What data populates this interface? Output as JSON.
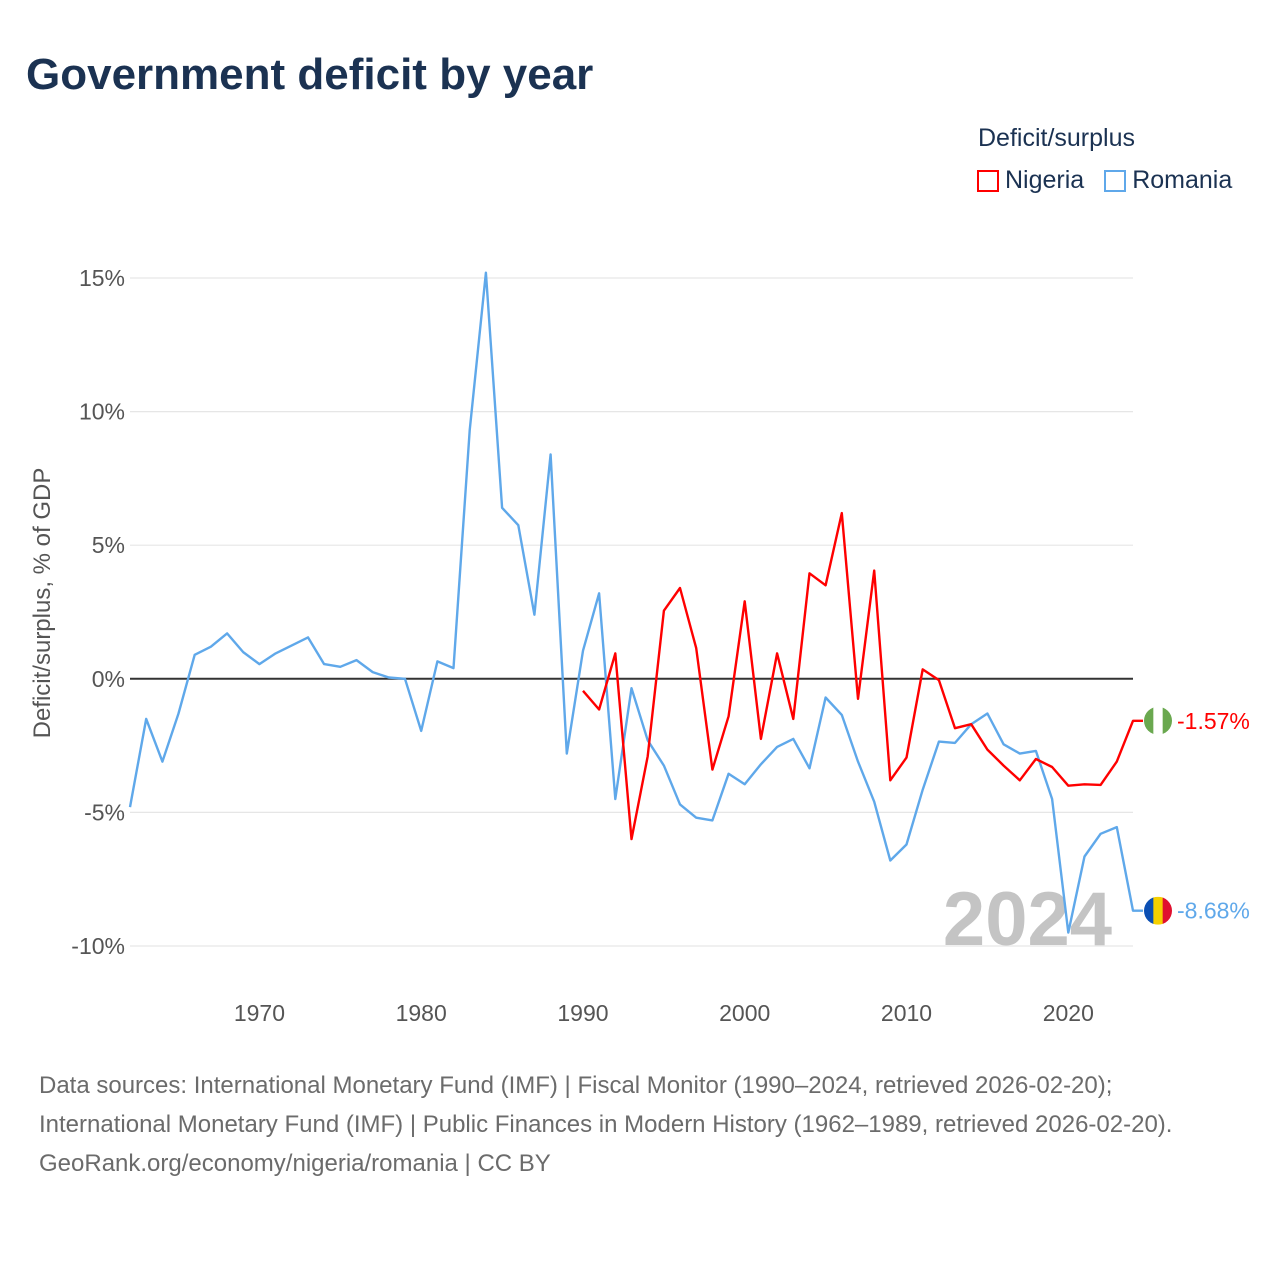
{
  "title": "Government deficit by year",
  "legend": {
    "title": "Deficit/surplus",
    "items": [
      {
        "label": "Nigeria",
        "color": "#ff0000"
      },
      {
        "label": "Romania",
        "color": "#5fa8ea"
      }
    ]
  },
  "watermark_year": "2024",
  "footer": {
    "sources": "Data sources: International Monetary Fund (IMF) | Fiscal Monitor (1990–2024, retrieved 2026-02-20); International Monetary Fund (IMF) | Public Finances in Modern History (1962–1989, retrieved 2026-02-20).",
    "credit": "GeoRank.org/economy/nigeria/romania | CC BY"
  },
  "chart_data": {
    "type": "line",
    "title": "Government deficit by year",
    "xlabel": "",
    "ylabel": "Deficit/surplus, % of GDP",
    "xlim": [
      1962,
      2024
    ],
    "ylim": [
      -10,
      15
    ],
    "xticks": [
      1970,
      1980,
      1990,
      2000,
      2010,
      2020
    ],
    "xtick_labels": [
      "1970",
      "1980",
      "1990",
      "2000",
      "2010",
      "2020"
    ],
    "yticks": [
      15,
      10,
      5,
      0,
      -5,
      -10
    ],
    "ytick_labels": [
      "15%",
      "10%",
      "5%",
      "0%",
      "-5%",
      "-10%"
    ],
    "grid": true,
    "legend_position": "top-right",
    "series": [
      {
        "name": "Nigeria",
        "color": "#ff0000",
        "end_label": "-1.57%",
        "start_year": 1990,
        "values": [
          -0.45,
          -1.15,
          0.95,
          -6.0,
          -2.9,
          2.55,
          3.4,
          1.15,
          -3.4,
          -1.4,
          2.9,
          -2.25,
          0.95,
          -1.5,
          3.95,
          3.5,
          6.2,
          -0.75,
          4.05,
          -3.8,
          -2.95,
          0.35,
          -0.05,
          -1.85,
          -1.7,
          -2.65,
          -3.25,
          -3.8,
          -3.0,
          -3.3,
          -4.0,
          -3.95,
          -3.97,
          -3.1,
          -1.57
        ]
      },
      {
        "name": "Romania",
        "color": "#5fa8ea",
        "end_label": "-8.68%",
        "start_year": 1962,
        "values": [
          -4.8,
          -1.5,
          -3.1,
          -1.3,
          0.9,
          1.2,
          1.7,
          1.0,
          0.55,
          0.95,
          1.25,
          1.55,
          0.55,
          0.45,
          0.7,
          0.25,
          0.05,
          0,
          -1.95,
          0.65,
          0.4,
          9.3,
          15.2,
          6.4,
          5.75,
          2.4,
          8.4,
          -2.8,
          1.05,
          3.2,
          -4.5,
          -0.35,
          -2.3,
          -3.25,
          -4.7,
          -5.2,
          -5.3,
          -3.55,
          -3.95,
          -3.2,
          -2.55,
          -2.25,
          -3.35,
          -0.7,
          -1.35,
          -3.1,
          -4.6,
          -6.8,
          -6.2,
          -4.15,
          -2.35,
          -2.4,
          -1.7,
          -1.3,
          -2.45,
          -2.8,
          -2.7,
          -4.5,
          -9.5,
          -6.65,
          -5.8,
          -5.55,
          -8.68
        ]
      }
    ]
  }
}
